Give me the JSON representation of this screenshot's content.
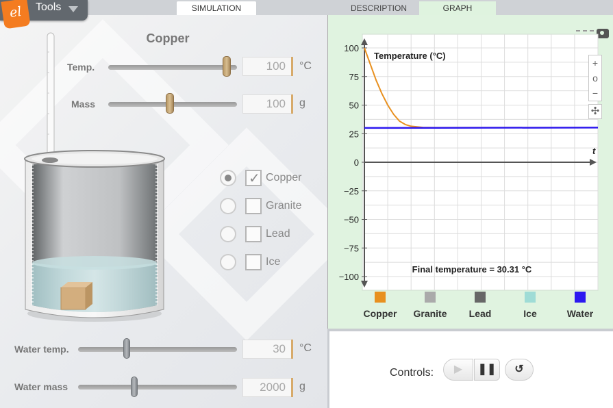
{
  "tabs": {
    "simulation": "SIMULATION",
    "description": "DESCRIPTION",
    "graph": "GRAPH"
  },
  "tools": {
    "label": "Tools",
    "logo": "el"
  },
  "sim": {
    "material_title": "Copper",
    "temp": {
      "label": "Temp.",
      "value": "100",
      "unit": "°C",
      "fraction": 0.95
    },
    "mass": {
      "label": "Mass",
      "value": "100",
      "unit": "g",
      "fraction": 0.48
    },
    "water_temp": {
      "label": "Water temp.",
      "value": "30",
      "unit": "°C",
      "fraction": 0.3
    },
    "water_mass": {
      "label": "Water mass",
      "value": "2000",
      "unit": "g",
      "fraction": 0.35
    },
    "materials": [
      {
        "label": "Copper",
        "radio_selected": true,
        "checked": true
      },
      {
        "label": "Granite",
        "radio_selected": false,
        "checked": false
      },
      {
        "label": "Lead",
        "radio_selected": false,
        "checked": false
      },
      {
        "label": "Ice",
        "radio_selected": false,
        "checked": false
      }
    ],
    "check_glyph": "✓"
  },
  "graph": {
    "final_text": "Final temperature = 30.31 °C",
    "zoom": {
      "in": "+",
      "reset": "o",
      "out": "−"
    },
    "pan_glyph": "✣"
  },
  "chart_data": {
    "type": "line",
    "ylabel": "Temperature (°C)",
    "xlabel": "t",
    "ylim": [
      -100,
      100
    ],
    "y_ticks": [
      "100",
      "75",
      "50",
      "25",
      "0",
      "−25",
      "−50",
      "−75",
      "−100"
    ],
    "grid": true,
    "series": [
      {
        "name": "Copper",
        "color": "#e8901f",
        "x": [
          0,
          0.5,
          1,
          1.5,
          2,
          2.5,
          3,
          3.5,
          4,
          5,
          6,
          20
        ],
        "values": [
          100,
          86,
          72,
          60,
          50,
          42,
          36,
          33,
          31.5,
          30.5,
          30.31,
          30.31
        ]
      },
      {
        "name": "Water",
        "color": "#2c18f0",
        "x": [
          0,
          20
        ],
        "values": [
          30,
          30.31
        ]
      }
    ],
    "xlim": [
      0,
      20
    ]
  },
  "legend": [
    {
      "label": "Copper",
      "color": "#e8901f"
    },
    {
      "label": "Granite",
      "color": "#aaaaaa"
    },
    {
      "label": "Lead",
      "color": "#676767"
    },
    {
      "label": "Ice",
      "color": "#9fdcd6"
    },
    {
      "label": "Water",
      "color": "#2c18f0"
    }
  ],
  "controls": {
    "label": "Controls:",
    "play": "▶",
    "pause": "❚❚",
    "reset": "↺"
  }
}
